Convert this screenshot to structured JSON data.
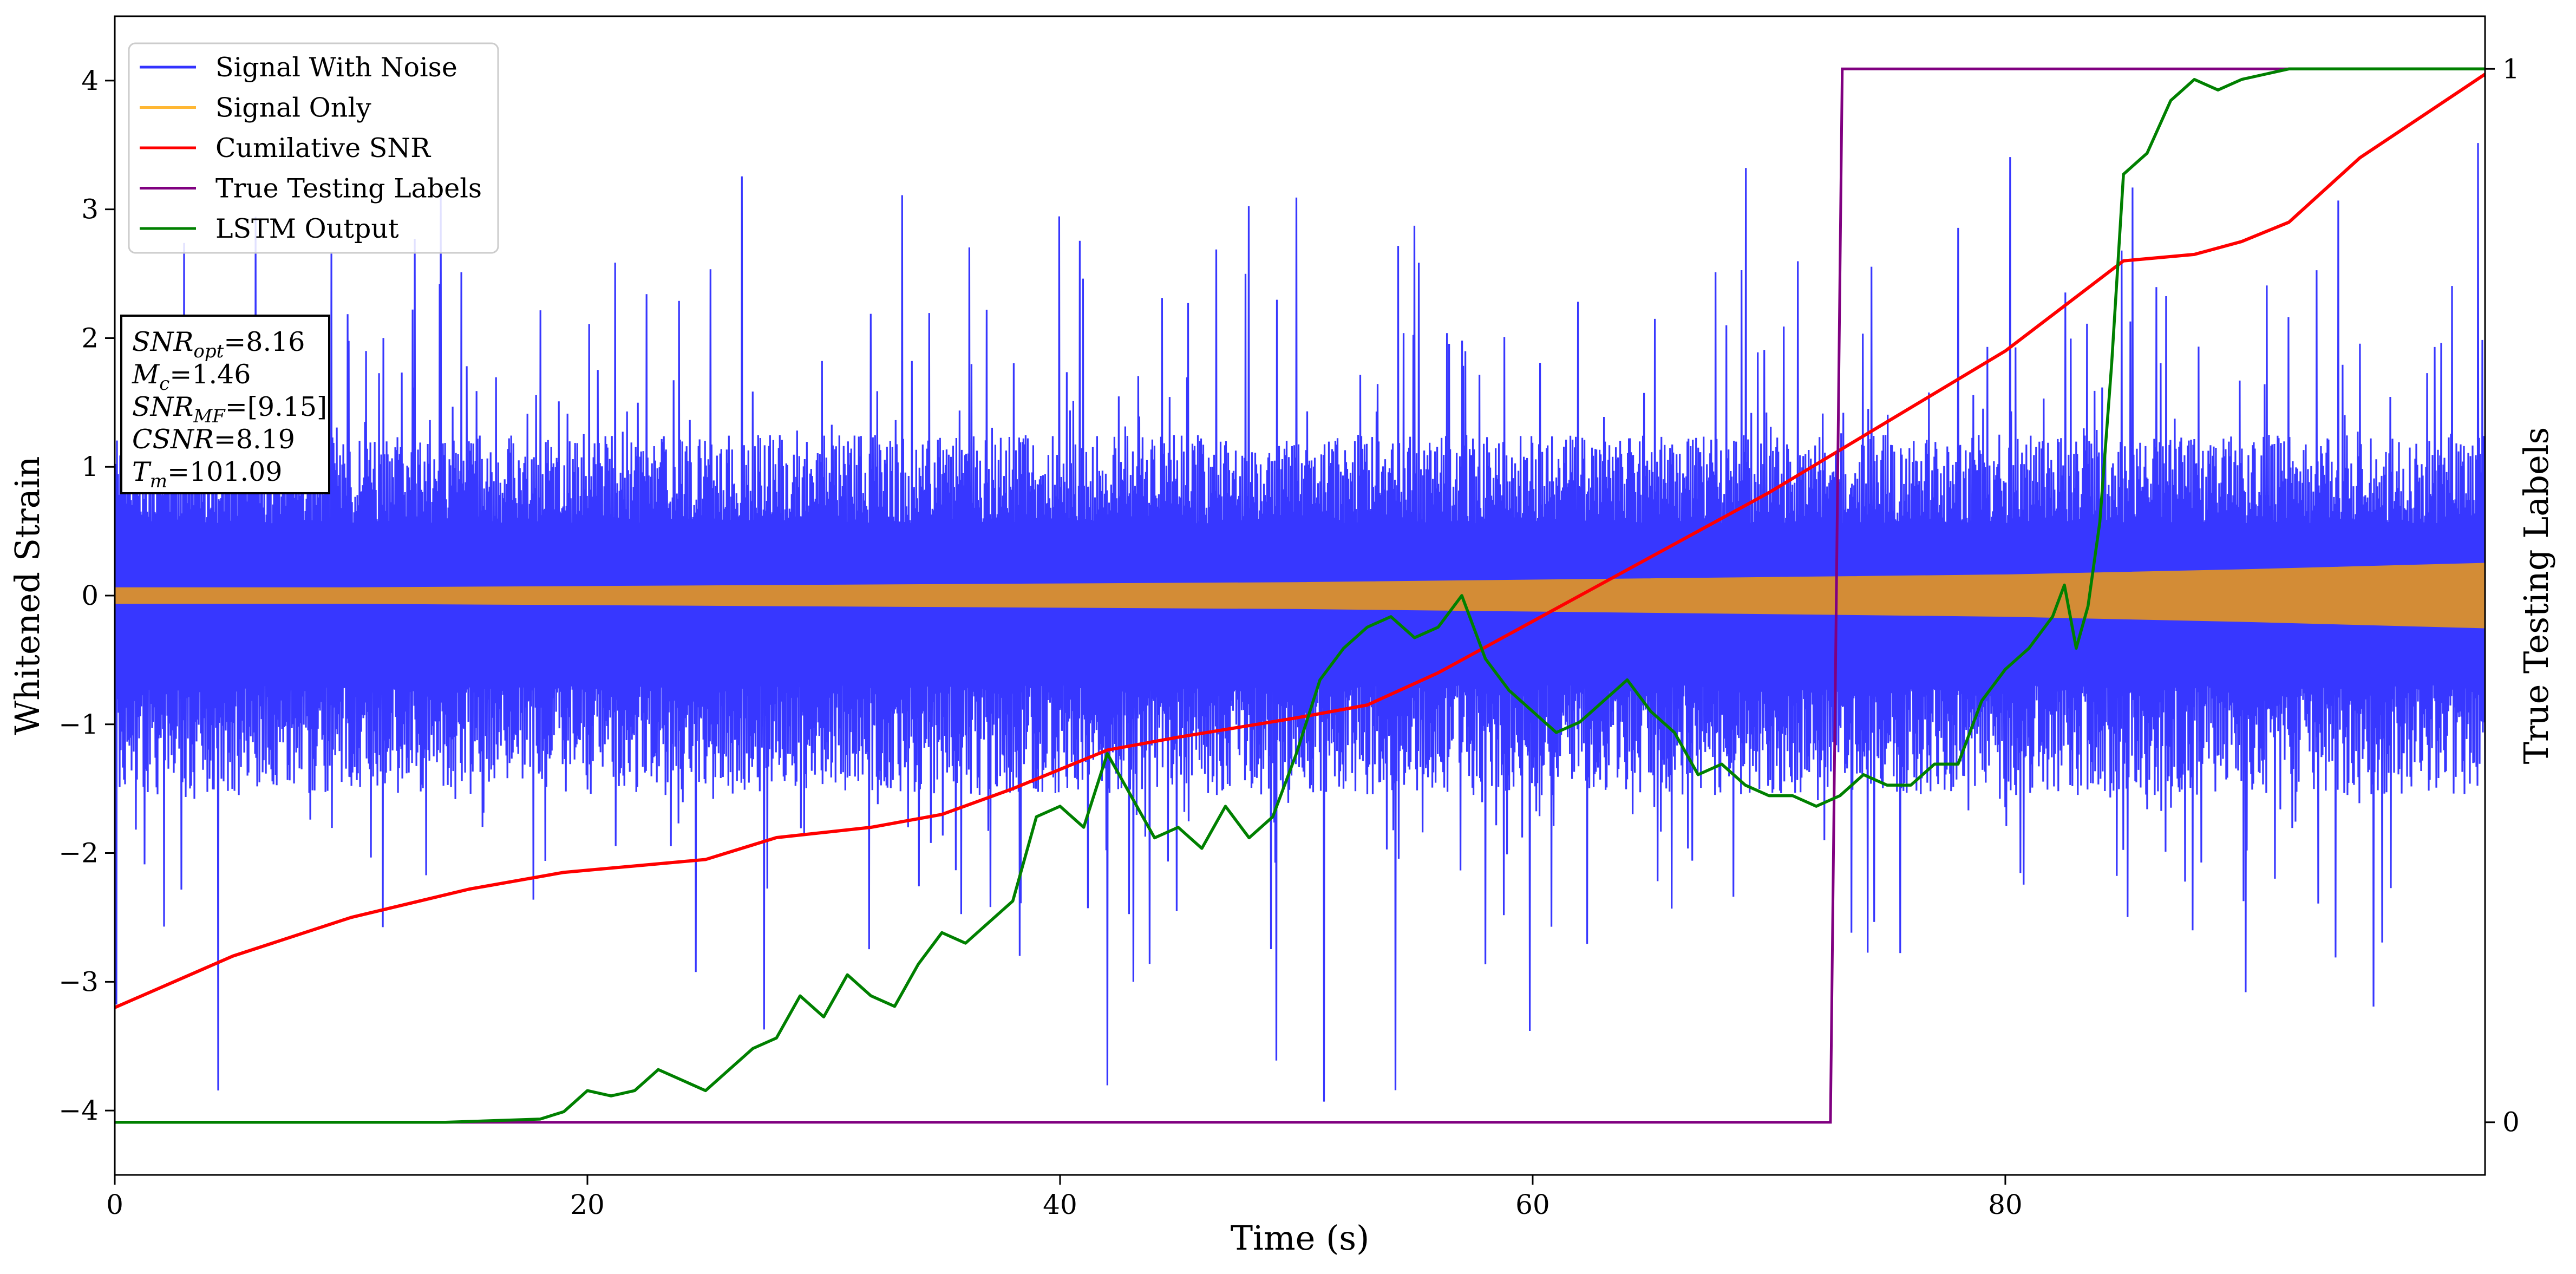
{
  "chart_data": {
    "type": "line",
    "xlabel": "Time (s)",
    "ylabel": "Whitened Strain",
    "y2label": "True Testing Labels",
    "xlim": [
      0,
      100.3
    ],
    "ylim": [
      -4.5,
      4.5
    ],
    "y2lim": [
      -0.05,
      1.05
    ],
    "x_ticks": [
      0,
      20,
      40,
      60,
      80
    ],
    "y_ticks": [
      -4,
      -3,
      -2,
      -1,
      0,
      1,
      2,
      3,
      4
    ],
    "y2_ticks": [
      0,
      1
    ],
    "grid": false,
    "legend_position": "upper-left",
    "legend": [
      "Signal With Noise",
      "Signal Only",
      "Cumilative SNR",
      "True Testing Labels",
      "LSTM Output"
    ],
    "info_box": [
      {
        "base": "SNR",
        "sub": "opt",
        "value": "=8.16"
      },
      {
        "base": "M",
        "sub": "c",
        "value": "=1.46"
      },
      {
        "base": "SNR",
        "sub": "MF",
        "value": "=[9.15]"
      },
      {
        "base": "CSNR",
        "sub": "",
        "value": "=8.19"
      },
      {
        "base": "T",
        "sub": "m",
        "value": "=101.09"
      }
    ],
    "series": [
      {
        "name": "Signal With Noise",
        "color": "#3333ff",
        "axis": "left",
        "style": "dense-noise",
        "envelope_upper": 1.25,
        "envelope_lower": -1.55,
        "peak_max": 4.2,
        "trough_min": -4.1
      },
      {
        "name": "Signal Only",
        "color": "#d38c36",
        "axis": "left",
        "style": "band",
        "x": [
          0,
          10,
          20,
          30,
          40,
          50,
          60,
          70,
          80,
          90,
          100.3
        ],
        "amplitude": [
          0.06,
          0.06,
          0.07,
          0.08,
          0.09,
          0.1,
          0.12,
          0.14,
          0.16,
          0.2,
          0.25
        ]
      },
      {
        "name": "Cumilative SNR",
        "color": "#ff0000",
        "axis": "left",
        "x": [
          0,
          5,
          10,
          15,
          19,
          22,
          25,
          28,
          32,
          35,
          38,
          42,
          45,
          50,
          53,
          56,
          60,
          65,
          70,
          75,
          80,
          85,
          88,
          90,
          92,
          95,
          100.3
        ],
        "y": [
          -3.2,
          -2.8,
          -2.5,
          -2.28,
          -2.15,
          -2.1,
          -2.05,
          -1.88,
          -1.8,
          -1.7,
          -1.5,
          -1.2,
          -1.1,
          -0.95,
          -0.85,
          -0.6,
          -0.2,
          0.3,
          0.8,
          1.35,
          1.9,
          2.6,
          2.65,
          2.75,
          2.9,
          3.4,
          4.05
        ]
      },
      {
        "name": "True Testing Labels",
        "color": "#800080",
        "axis": "right",
        "x": [
          0,
          72.6,
          73.1,
          100.3
        ],
        "y": [
          0,
          0,
          1,
          1
        ]
      },
      {
        "name": "LSTM Output",
        "color": "#008000",
        "axis": "right",
        "x": [
          0,
          14,
          18,
          19,
          20,
          21,
          22,
          23,
          24,
          25,
          26,
          27,
          28,
          29,
          30,
          31,
          32,
          33,
          34,
          35,
          36,
          37,
          38,
          39,
          40,
          41,
          42,
          43,
          44,
          45,
          46,
          47,
          48,
          49,
          50,
          51,
          52,
          53,
          54,
          55,
          56,
          57,
          58,
          59,
          60,
          61,
          62,
          63,
          64,
          65,
          66,
          67,
          68,
          69,
          70,
          71,
          72,
          73,
          74,
          75,
          76,
          77,
          78,
          79,
          80,
          81,
          82,
          82.5,
          83,
          83.5,
          84,
          84.5,
          85,
          86,
          87,
          88,
          89,
          90,
          91,
          92,
          93,
          95,
          100.3
        ],
        "y": [
          0,
          0,
          0.003,
          0.01,
          0.03,
          0.025,
          0.03,
          0.05,
          0.04,
          0.03,
          0.05,
          0.07,
          0.08,
          0.12,
          0.1,
          0.14,
          0.12,
          0.11,
          0.15,
          0.18,
          0.17,
          0.19,
          0.21,
          0.29,
          0.3,
          0.28,
          0.35,
          0.31,
          0.27,
          0.28,
          0.26,
          0.3,
          0.27,
          0.29,
          0.35,
          0.42,
          0.45,
          0.47,
          0.48,
          0.46,
          0.47,
          0.5,
          0.44,
          0.41,
          0.39,
          0.37,
          0.38,
          0.4,
          0.42,
          0.39,
          0.37,
          0.33,
          0.34,
          0.32,
          0.31,
          0.31,
          0.3,
          0.31,
          0.33,
          0.32,
          0.32,
          0.34,
          0.34,
          0.4,
          0.43,
          0.45,
          0.48,
          0.51,
          0.45,
          0.49,
          0.57,
          0.72,
          0.9,
          0.92,
          0.97,
          0.99,
          0.98,
          0.99,
          0.995,
          1,
          1,
          1,
          1
        ]
      }
    ]
  }
}
